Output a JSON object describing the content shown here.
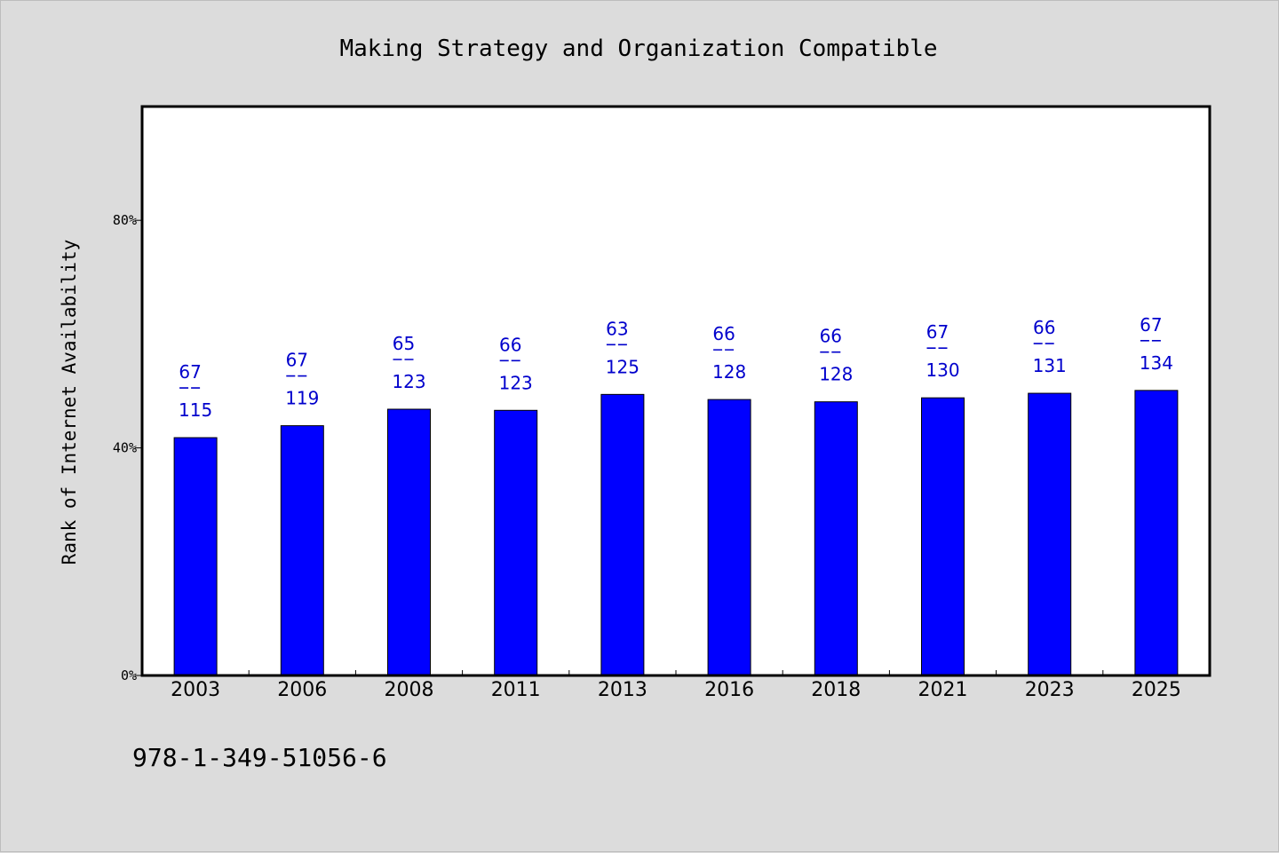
{
  "chart_data": {
    "type": "bar",
    "title": "Making Strategy and Organization Compatible",
    "xlabel": "",
    "ylabel": "Rank of Internet Availability",
    "ylim": [
      0,
      100
    ],
    "yticks": [
      {
        "value": 0,
        "label": "0%"
      },
      {
        "value": 40,
        "label": "40%"
      },
      {
        "value": 80,
        "label": "80%"
      }
    ],
    "categories": [
      "2003",
      "2006",
      "2008",
      "2011",
      "2013",
      "2016",
      "2018",
      "2021",
      "2023",
      "2025"
    ],
    "values": [
      41.8,
      43.9,
      46.8,
      46.6,
      49.4,
      48.5,
      48.1,
      48.8,
      49.6,
      50.1
    ],
    "bar_labels": [
      {
        "top": "67",
        "bottom": "115"
      },
      {
        "top": "67",
        "bottom": "119"
      },
      {
        "top": "65",
        "bottom": "123"
      },
      {
        "top": "66",
        "bottom": "123"
      },
      {
        "top": "63",
        "bottom": "125"
      },
      {
        "top": "66",
        "bottom": "128"
      },
      {
        "top": "66",
        "bottom": "128"
      },
      {
        "top": "67",
        "bottom": "130"
      },
      {
        "top": "66",
        "bottom": "131"
      },
      {
        "top": "67",
        "bottom": "134"
      }
    ],
    "bar_color": "#0000ff",
    "label_color": "#0000cc",
    "grid": false
  },
  "footer": {
    "isbn": "978-1-349-51056-6"
  }
}
